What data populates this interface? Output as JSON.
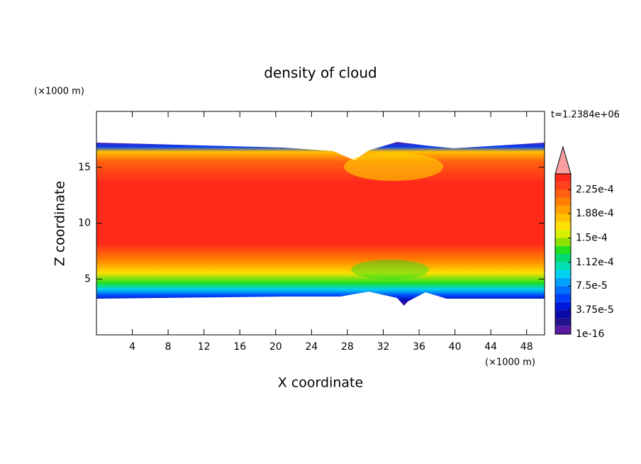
{
  "chart_data": {
    "type": "contour",
    "title": "density of cloud",
    "xlabel": "X coordinate",
    "ylabel": "Z coordinate",
    "xunit": "(×1000 m)",
    "yunit": "(×1000 m)",
    "annotation": "t=1.2384e+06",
    "xlim": [
      0,
      50
    ],
    "xticks": [
      4,
      8,
      12,
      16,
      20,
      24,
      28,
      32,
      36,
      40,
      44,
      48
    ],
    "ylim": [
      0,
      20
    ],
    "yticks": [
      5,
      10,
      15
    ],
    "colorbar": {
      "clim": [
        1e-16,
        0.00025
      ],
      "ticks": [
        1e-16,
        {
          "value": 3.75e-05,
          "label": "3.75e-5"
        },
        {
          "value": 7.5e-05,
          "label": "7.5e-5"
        },
        {
          "value": 0.000112,
          "label": "1.12e-4"
        },
        {
          "value": 0.00015,
          "label": "1.5e-4"
        },
        {
          "value": 0.000188,
          "label": "1.88e-4"
        },
        {
          "value": 0.000225,
          "label": "2.25e-4"
        }
      ],
      "colors": [
        "#5a1aa0",
        "#24128c",
        "#0a0aa8",
        "#0018d8",
        "#0040f8",
        "#0070ff",
        "#00a0ff",
        "#00d0f0",
        "#00e0b0",
        "#00d870",
        "#20e020",
        "#90e000",
        "#d8f000",
        "#ffe000",
        "#ffc000",
        "#ffa000",
        "#ff8000",
        "#ff6010",
        "#ff4018",
        "#ff2a1a"
      ],
      "extend_color": "#f8a0a0"
    }
  }
}
